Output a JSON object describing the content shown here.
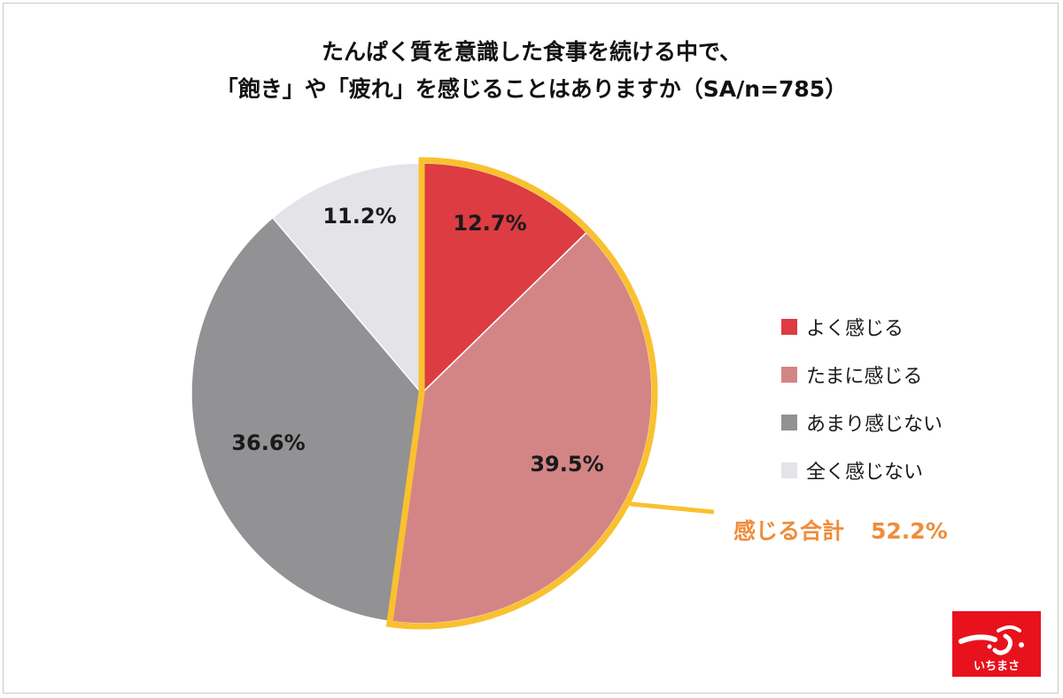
{
  "chart_data": {
    "type": "pie",
    "title_lines": [
      "たんぱく質を意識した食事を続ける中で、",
      "「飽き」や「疲れ」を感じることはありますか（SA/n=785）"
    ],
    "slices": [
      {
        "label": "よく感じる",
        "value": 12.7,
        "display": "12.7%",
        "color": "#dc3c42"
      },
      {
        "label": "たまに感じる",
        "value": 39.5,
        "display": "39.5%",
        "color": "#d38586"
      },
      {
        "label": "あまり感じない",
        "value": 36.6,
        "display": "36.6%",
        "color": "#929193"
      },
      {
        "label": "全く感じない",
        "value": 11.2,
        "display": "11.2%",
        "color": "#e4e3e8"
      }
    ],
    "highlight": {
      "label": "感じる合計",
      "value_text": "52.2%",
      "value": 52.2,
      "color": "#f9c12f",
      "text_color": "#ef8c3a"
    },
    "legend_position": "right",
    "logo": {
      "mark": "一ふ",
      "text": "いちまさ",
      "color": "#e8121d"
    }
  }
}
